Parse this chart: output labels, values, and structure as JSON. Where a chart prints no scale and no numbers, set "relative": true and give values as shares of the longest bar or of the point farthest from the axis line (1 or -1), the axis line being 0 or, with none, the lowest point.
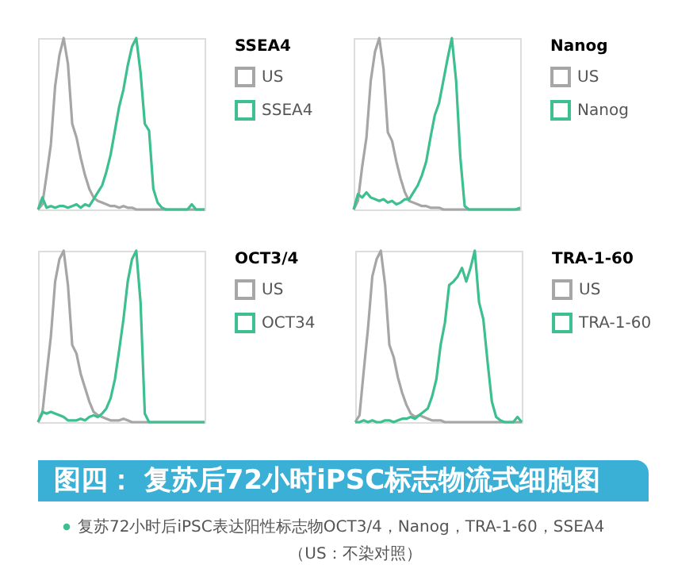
{
  "chart_data": [
    {
      "type": "line",
      "relative": true,
      "legend": "right",
      "legend_title": "SSEA4",
      "categories": [
        null,
        null,
        null,
        null,
        null,
        null,
        null,
        null,
        null,
        null,
        null,
        null,
        null,
        null,
        null,
        null,
        null,
        null,
        null,
        null,
        null,
        null,
        null,
        null,
        null,
        null,
        null,
        null,
        null,
        null,
        null,
        null,
        null,
        null,
        null,
        null,
        null,
        null,
        null,
        null
      ],
      "series": [
        {
          "name": "US",
          "color": "#a6a6a6",
          "values": [
            0,
            0.03,
            0.2,
            0.38,
            0.72,
            0.9,
            1,
            0.85,
            0.5,
            0.42,
            0.3,
            0.2,
            0.12,
            0.07,
            0.05,
            0.04,
            0.03,
            0.02,
            0.02,
            0.01,
            0.02,
            0.01,
            0.01,
            0,
            0,
            0,
            0,
            0,
            0,
            0,
            0,
            0,
            0,
            0,
            0,
            0,
            0,
            0,
            0,
            0
          ]
        },
        {
          "name": "SSEA4",
          "color": "#3dbf8f",
          "values": [
            0,
            0.07,
            0.01,
            0.02,
            0.01,
            0.02,
            0.02,
            0.01,
            0.02,
            0.03,
            0.01,
            0.03,
            0.02,
            0.06,
            0.1,
            0.14,
            0.22,
            0.32,
            0.46,
            0.6,
            0.7,
            0.84,
            0.95,
            1,
            0.8,
            0.5,
            0.46,
            0.12,
            0.04,
            0.01,
            0,
            0,
            0,
            0,
            0,
            0,
            0.03,
            0,
            0,
            0
          ]
        }
      ]
    },
    {
      "type": "line",
      "relative": true,
      "legend": "right",
      "legend_title": "Nanog",
      "categories": [
        null,
        null,
        null,
        null,
        null,
        null,
        null,
        null,
        null,
        null,
        null,
        null,
        null,
        null,
        null,
        null,
        null,
        null,
        null,
        null,
        null,
        null,
        null,
        null,
        null,
        null,
        null,
        null,
        null,
        null,
        null,
        null,
        null,
        null,
        null,
        null,
        null,
        null,
        null,
        null
      ],
      "series": [
        {
          "name": "US",
          "color": "#a6a6a6",
          "values": [
            0,
            0.05,
            0.25,
            0.42,
            0.75,
            0.92,
            1,
            0.82,
            0.45,
            0.4,
            0.28,
            0.18,
            0.1,
            0.05,
            0.04,
            0.03,
            0.02,
            0.02,
            0.01,
            0.01,
            0.01,
            0,
            0,
            0,
            0,
            0,
            0,
            0,
            0,
            0,
            0,
            0,
            0,
            0,
            0,
            0,
            0,
            0,
            0,
            0
          ]
        },
        {
          "name": "Nanog",
          "color": "#3dbf8f",
          "values": [
            0,
            0.09,
            0.07,
            0.1,
            0.07,
            0.06,
            0.05,
            0.06,
            0.04,
            0.05,
            0.03,
            0.04,
            0.06,
            0.06,
            0.1,
            0.14,
            0.2,
            0.28,
            0.42,
            0.55,
            0.62,
            0.75,
            0.88,
            1,
            0.75,
            0.3,
            0.02,
            0,
            0,
            0,
            0,
            0,
            0,
            0,
            0,
            0,
            0,
            0,
            0,
            0.01
          ]
        }
      ]
    },
    {
      "type": "line",
      "relative": true,
      "legend": "right",
      "legend_title": "OCT3/4",
      "categories": [
        null,
        null,
        null,
        null,
        null,
        null,
        null,
        null,
        null,
        null,
        null,
        null,
        null,
        null,
        null,
        null,
        null,
        null,
        null,
        null,
        null,
        null,
        null,
        null,
        null,
        null,
        null,
        null,
        null,
        null,
        null,
        null,
        null,
        null,
        null,
        null,
        null,
        null,
        null,
        null
      ],
      "series": [
        {
          "name": "US",
          "color": "#a6a6a6",
          "values": [
            0,
            0.05,
            0.28,
            0.5,
            0.82,
            0.95,
            1,
            0.8,
            0.45,
            0.4,
            0.28,
            0.2,
            0.12,
            0.06,
            0.04,
            0.03,
            0.02,
            0.01,
            0.01,
            0.01,
            0.02,
            0.01,
            0,
            0,
            0,
            0,
            0,
            0,
            0,
            0,
            0,
            0,
            0,
            0,
            0,
            0,
            0,
            0,
            0,
            0
          ]
        },
        {
          "name": "OCT34",
          "color": "#3dbf8f",
          "values": [
            0,
            0.06,
            0.05,
            0.06,
            0.05,
            0.04,
            0.03,
            0.01,
            0.01,
            0.01,
            0.02,
            0.01,
            0.03,
            0.04,
            0.03,
            0.05,
            0.08,
            0.14,
            0.25,
            0.42,
            0.6,
            0.82,
            0.95,
            1,
            0.7,
            0.05,
            0,
            0,
            0,
            0,
            0,
            0,
            0,
            0,
            0,
            0,
            0,
            0,
            0,
            0
          ]
        }
      ]
    },
    {
      "type": "line",
      "relative": true,
      "legend": "right",
      "legend_title": "TRA-1-60",
      "categories": [
        null,
        null,
        null,
        null,
        null,
        null,
        null,
        null,
        null,
        null,
        null,
        null,
        null,
        null,
        null,
        null,
        null,
        null,
        null,
        null,
        null,
        null,
        null,
        null,
        null,
        null,
        null,
        null,
        null,
        null,
        null,
        null,
        null,
        null,
        null,
        null,
        null,
        null,
        null,
        null
      ],
      "series": [
        {
          "name": "US",
          "color": "#a6a6a6",
          "values": [
            0,
            0.04,
            0.3,
            0.55,
            0.85,
            0.95,
            1,
            0.8,
            0.45,
            0.38,
            0.26,
            0.17,
            0.1,
            0.05,
            0.03,
            0.04,
            0.03,
            0.02,
            0.01,
            0.01,
            0.01,
            0,
            0,
            0,
            0,
            0,
            0,
            0,
            0,
            0,
            0,
            0,
            0,
            0,
            0,
            0,
            0,
            0,
            0,
            0
          ]
        },
        {
          "name": "TRA-1-60",
          "color": "#3dbf8f",
          "values": [
            0,
            0,
            0.01,
            0,
            0.01,
            0,
            0,
            0.01,
            0.01,
            0,
            0.01,
            0.02,
            0.02,
            0.03,
            0.02,
            0.04,
            0.06,
            0.08,
            0.15,
            0.25,
            0.45,
            0.58,
            0.8,
            0.82,
            0.85,
            0.9,
            0.82,
            0.9,
            1,
            0.7,
            0.6,
            0.35,
            0.12,
            0.03,
            0.01,
            0,
            0,
            0,
            0.03,
            0
          ]
        }
      ]
    },
    {
      "type": "other",
      "annotations": [
        "图四：  复苏后72小时iPSC标志物流式细胞图",
        "复苏72小时后iPSC表达阳性标志物OCT3/4，Nanog，TRA-1-60，SSEA4",
        "（US：不染对照）"
      ]
    }
  ]
}
